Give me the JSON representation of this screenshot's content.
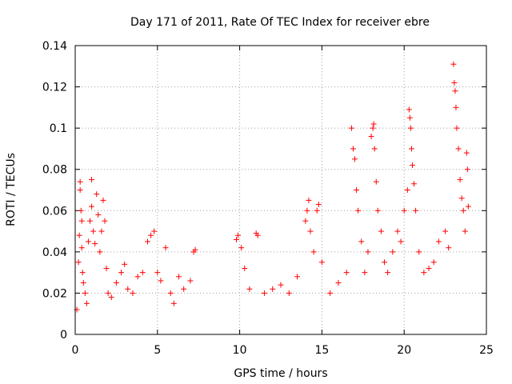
{
  "chart_data": {
    "type": "scatter",
    "title": "Day 171 of 2011, Rate Of TEC Index for receiver ebre",
    "xlabel": "GPS time / hours",
    "ylabel": "ROTI / TECUs",
    "xlim": [
      0,
      25
    ],
    "ylim": [
      0,
      0.14
    ],
    "x_ticks": [
      0,
      5,
      10,
      15,
      20,
      25
    ],
    "x_tick_labels": [
      "0",
      "5",
      "10",
      "15",
      "20",
      "25"
    ],
    "y_ticks": [
      0,
      0.02,
      0.04,
      0.06,
      0.08,
      0.1,
      0.12,
      0.14
    ],
    "y_tick_labels": [
      "0",
      "0.02",
      "0.04",
      "0.06",
      "0.08",
      "0.1",
      "0.12",
      "0.14"
    ],
    "grid": true,
    "marker": "+",
    "marker_color": "#ff0000",
    "series": [
      {
        "name": "ROTI",
        "points": [
          [
            0.1,
            0.012
          ],
          [
            0.2,
            0.035
          ],
          [
            0.25,
            0.048
          ],
          [
            0.3,
            0.074
          ],
          [
            0.3,
            0.07
          ],
          [
            0.35,
            0.06
          ],
          [
            0.4,
            0.055
          ],
          [
            0.4,
            0.042
          ],
          [
            0.45,
            0.03
          ],
          [
            0.5,
            0.025
          ],
          [
            0.6,
            0.02
          ],
          [
            0.7,
            0.015
          ],
          [
            0.8,
            0.045
          ],
          [
            0.9,
            0.055
          ],
          [
            1.0,
            0.075
          ],
          [
            1.0,
            0.062
          ],
          [
            1.1,
            0.05
          ],
          [
            1.2,
            0.044
          ],
          [
            1.3,
            0.068
          ],
          [
            1.4,
            0.058
          ],
          [
            1.5,
            0.04
          ],
          [
            1.6,
            0.05
          ],
          [
            1.7,
            0.065
          ],
          [
            1.8,
            0.055
          ],
          [
            1.9,
            0.032
          ],
          [
            2.0,
            0.02
          ],
          [
            2.2,
            0.018
          ],
          [
            2.5,
            0.025
          ],
          [
            2.8,
            0.03
          ],
          [
            3.0,
            0.034
          ],
          [
            3.2,
            0.022
          ],
          [
            3.5,
            0.02
          ],
          [
            3.8,
            0.028
          ],
          [
            4.1,
            0.03
          ],
          [
            4.4,
            0.045
          ],
          [
            4.6,
            0.048
          ],
          [
            4.8,
            0.05
          ],
          [
            5.0,
            0.03
          ],
          [
            5.2,
            0.026
          ],
          [
            5.5,
            0.042
          ],
          [
            5.8,
            0.02
          ],
          [
            6.0,
            0.015
          ],
          [
            6.3,
            0.028
          ],
          [
            6.6,
            0.022
          ],
          [
            7.0,
            0.026
          ],
          [
            7.2,
            0.04
          ],
          [
            7.3,
            0.041
          ],
          [
            9.8,
            0.046
          ],
          [
            9.9,
            0.048
          ],
          [
            10.1,
            0.042
          ],
          [
            10.3,
            0.032
          ],
          [
            10.6,
            0.022
          ],
          [
            11.0,
            0.049
          ],
          [
            11.1,
            0.048
          ],
          [
            11.5,
            0.02
          ],
          [
            12.0,
            0.022
          ],
          [
            12.5,
            0.024
          ],
          [
            13.0,
            0.02
          ],
          [
            13.5,
            0.028
          ],
          [
            14.0,
            0.055
          ],
          [
            14.1,
            0.06
          ],
          [
            14.2,
            0.065
          ],
          [
            14.3,
            0.05
          ],
          [
            14.5,
            0.04
          ],
          [
            14.7,
            0.06
          ],
          [
            14.8,
            0.063
          ],
          [
            15.0,
            0.035
          ],
          [
            15.5,
            0.02
          ],
          [
            16.0,
            0.025
          ],
          [
            16.5,
            0.03
          ],
          [
            16.8,
            0.1
          ],
          [
            16.9,
            0.09
          ],
          [
            17.0,
            0.085
          ],
          [
            17.1,
            0.07
          ],
          [
            17.2,
            0.06
          ],
          [
            17.4,
            0.045
          ],
          [
            17.6,
            0.03
          ],
          [
            17.8,
            0.04
          ],
          [
            18.0,
            0.096
          ],
          [
            18.1,
            0.1
          ],
          [
            18.15,
            0.102
          ],
          [
            18.2,
            0.09
          ],
          [
            18.3,
            0.074
          ],
          [
            18.4,
            0.06
          ],
          [
            18.6,
            0.05
          ],
          [
            18.8,
            0.035
          ],
          [
            19.0,
            0.03
          ],
          [
            19.3,
            0.04
          ],
          [
            19.6,
            0.05
          ],
          [
            19.8,
            0.045
          ],
          [
            20.0,
            0.06
          ],
          [
            20.2,
            0.07
          ],
          [
            20.3,
            0.109
          ],
          [
            20.35,
            0.105
          ],
          [
            20.4,
            0.1
          ],
          [
            20.45,
            0.09
          ],
          [
            20.5,
            0.082
          ],
          [
            20.6,
            0.073
          ],
          [
            20.7,
            0.06
          ],
          [
            20.9,
            0.04
          ],
          [
            21.2,
            0.03
          ],
          [
            21.5,
            0.032
          ],
          [
            21.8,
            0.035
          ],
          [
            22.1,
            0.045
          ],
          [
            22.5,
            0.05
          ],
          [
            22.7,
            0.042
          ],
          [
            23.0,
            0.131
          ],
          [
            23.05,
            0.122
          ],
          [
            23.1,
            0.118
          ],
          [
            23.15,
            0.11
          ],
          [
            23.2,
            0.1
          ],
          [
            23.3,
            0.09
          ],
          [
            23.4,
            0.075
          ],
          [
            23.5,
            0.066
          ],
          [
            23.6,
            0.06
          ],
          [
            23.7,
            0.05
          ],
          [
            23.8,
            0.088
          ],
          [
            23.85,
            0.08
          ],
          [
            23.9,
            0.062
          ]
        ]
      }
    ]
  }
}
